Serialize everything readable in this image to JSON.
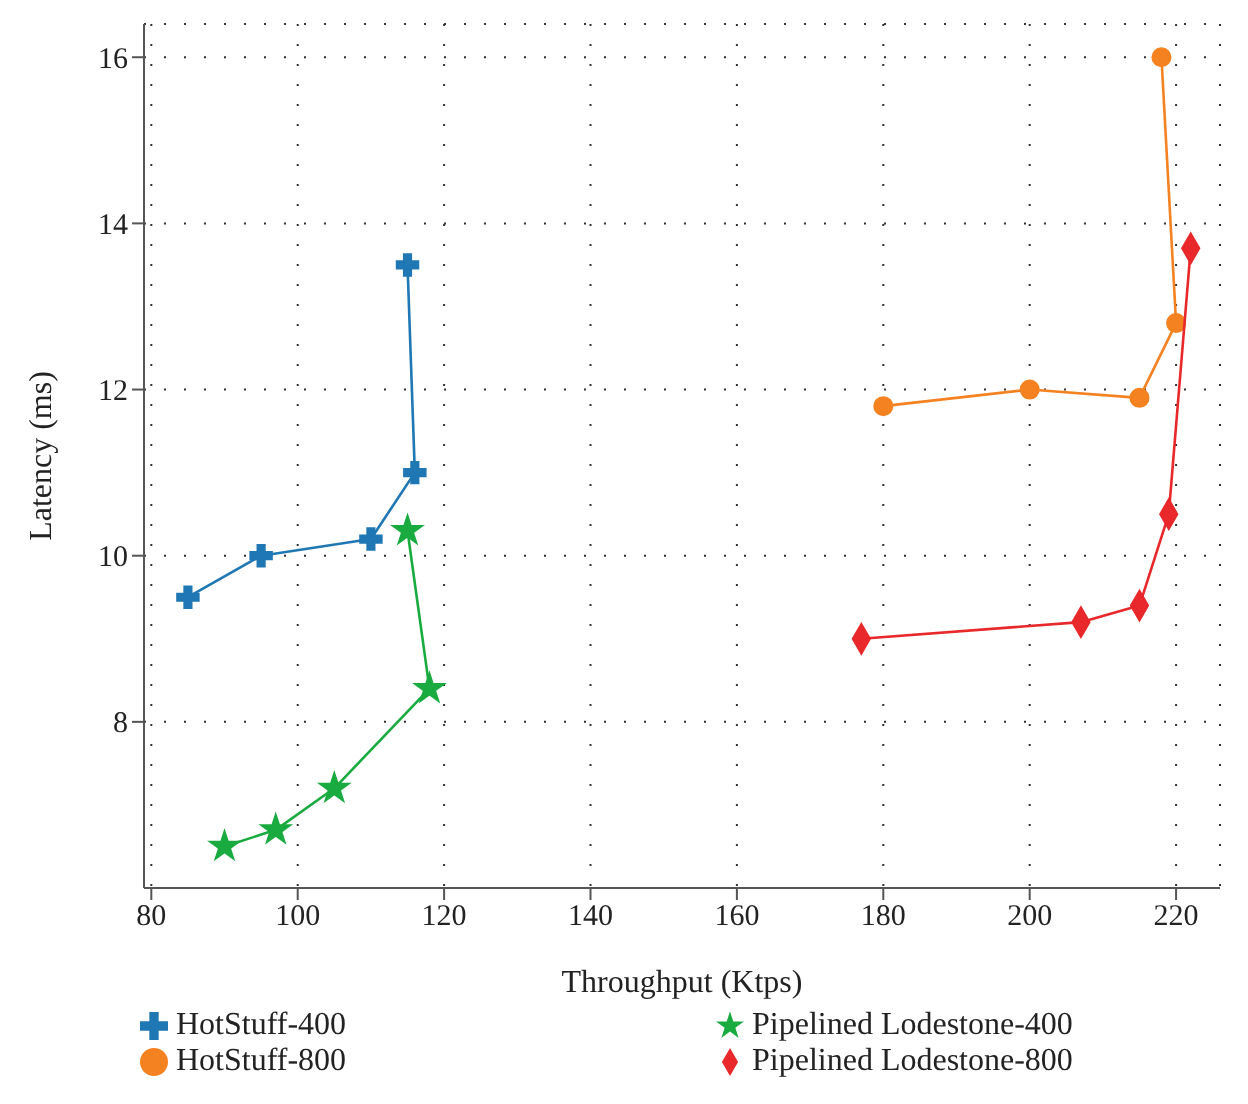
{
  "chart_data": {
    "type": "line",
    "xlabel": "Throughput (Ktps)",
    "ylabel": "Latency (ms)",
    "xlim": [
      79,
      226
    ],
    "xticks": [
      80,
      100,
      120,
      140,
      160,
      180,
      200,
      220
    ],
    "ylim": [
      6,
      16.4
    ],
    "yticks": [
      8,
      10,
      12,
      14,
      16
    ],
    "grid": true,
    "legend": "bottom",
    "series": [
      {
        "name": "HotStuff-400",
        "color": "#1f77b4",
        "marker": "cross",
        "x": [
          85,
          95,
          110,
          116,
          115
        ],
        "values": [
          9.5,
          10,
          10.2,
          11,
          13.5
        ]
      },
      {
        "name": "Pipelined Lodestone-400",
        "color": "#1aab40",
        "marker": "star",
        "x": [
          90,
          97,
          105,
          118,
          115
        ],
        "values": [
          6.5,
          6.7,
          7.2,
          8.4,
          10.3
        ]
      },
      {
        "name": "HotStuff-800",
        "color": "#f58220",
        "marker": "circle",
        "x": [
          180,
          200,
          215,
          220,
          218
        ],
        "values": [
          11.8,
          12,
          11.9,
          12.8,
          16
        ]
      },
      {
        "name": "Pipelined Lodestone-800",
        "color": "#e8282b",
        "marker": "diamond",
        "x": [
          177,
          207,
          215,
          219,
          222
        ],
        "values": [
          9,
          9.2,
          9.4,
          10.5,
          13.7
        ]
      }
    ]
  }
}
